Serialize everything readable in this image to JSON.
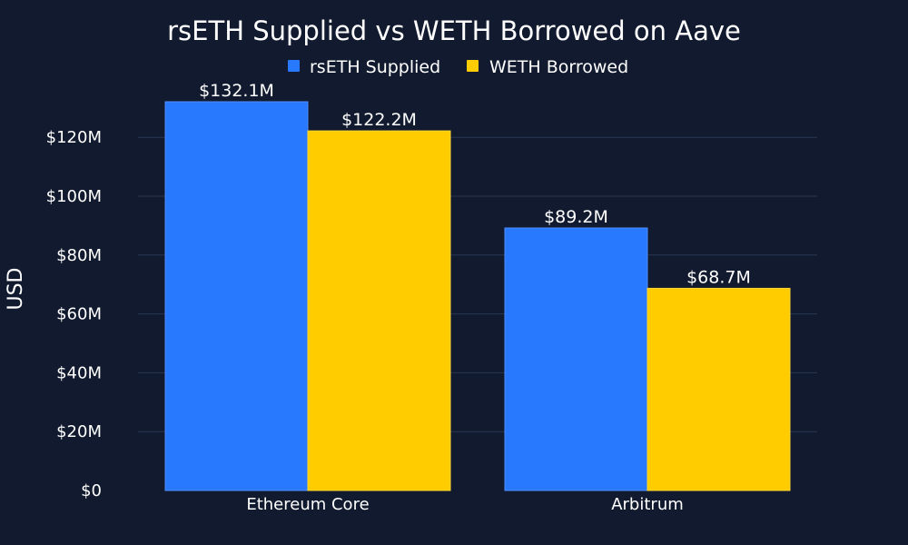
{
  "chart_data": {
    "type": "bar",
    "title": "rsETH Supplied vs WETH Borrowed on Aave",
    "xlabel": "",
    "ylabel": "USD",
    "categories": [
      "Ethereum Core",
      "Arbitrum"
    ],
    "series": [
      {
        "name": "rsETH Supplied",
        "color": "#2979ff",
        "values": [
          132.1,
          89.2
        ],
        "labels": [
          "$132.1M",
          "$89.2M"
        ]
      },
      {
        "name": "WETH Borrowed",
        "color": "#ffcc00",
        "values": [
          122.2,
          68.7
        ],
        "labels": [
          "$122.2M",
          "$68.7M"
        ]
      }
    ],
    "ylim": [
      0,
      132.1
    ],
    "yticks": [
      0,
      20,
      40,
      60,
      80,
      100,
      120
    ],
    "ytick_labels": [
      "$0",
      "$20M",
      "$40M",
      "$60M",
      "$80M",
      "$100M",
      "$120M"
    ],
    "legend_position": "top-center",
    "grid": true,
    "background_color": "#111a2e",
    "grid_color": "#2a3754",
    "text_color": "#ffffff"
  }
}
